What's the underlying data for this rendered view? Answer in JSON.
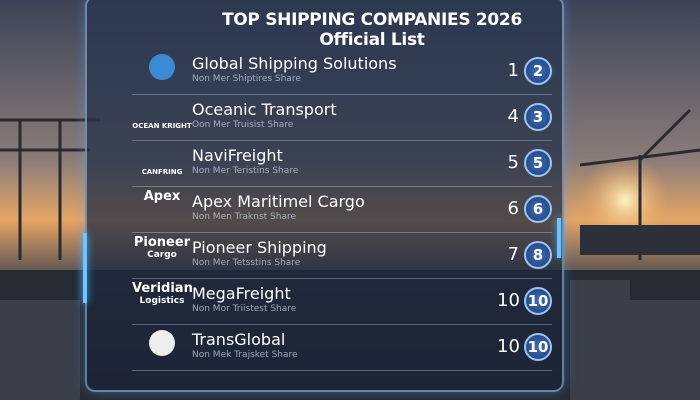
{
  "header": {
    "title": "TOP SHIPPING COMPANIES 2026 Official List"
  },
  "rows": [
    {
      "logo": [],
      "name": "Global Shipping Solutions",
      "subtitle": "Non Mer Shiptires Share",
      "rank": 1,
      "badge": 2
    },
    {
      "logo": [
        "OCEAN KRIGHT"
      ],
      "name": "Oceanic Transport",
      "subtitle": "Oon Mer Truisist Share",
      "rank": 4,
      "badge": 3
    },
    {
      "logo": [
        "CANFRING"
      ],
      "name": "NaviFreight",
      "subtitle": "Non Mer Teristins Share",
      "rank": 5,
      "badge": 5
    },
    {
      "logo": [
        "Apex"
      ],
      "name": "Apex Maritimel Cargo",
      "subtitle": "Non Men Traknst Share",
      "rank": 6,
      "badge": 6
    },
    {
      "logo": [
        "Pioneer",
        "Cargo"
      ],
      "name": "Pioneer Shipping",
      "subtitle": "Non Mer Tetsstins Share",
      "rank": 7,
      "badge": 8
    },
    {
      "logo": [
        "Veridian",
        "Logistics"
      ],
      "name": "MegaFreight",
      "subtitle": "Non Mor Triistest Share",
      "rank": 10,
      "badge": 10
    },
    {
      "logo": [],
      "name": "TransGlobal",
      "subtitle": "Non Mek Trajsket Share",
      "rank": 10,
      "badge": 10
    }
  ]
}
